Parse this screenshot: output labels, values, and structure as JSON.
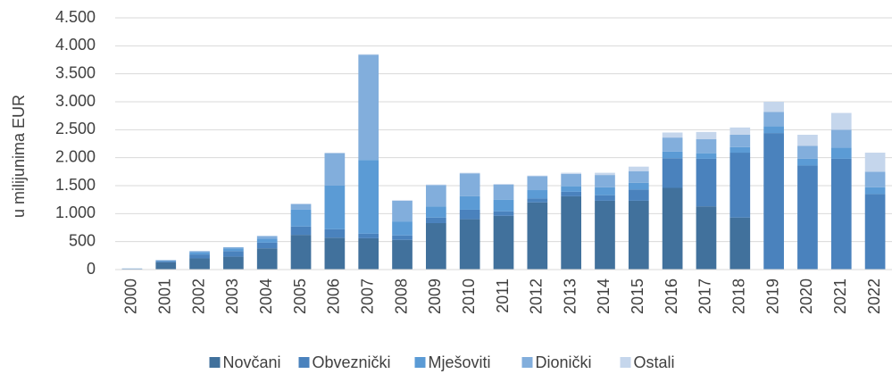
{
  "chart_data": {
    "type": "stacked_bar",
    "y_label": "u milijunima EUR",
    "categories": [
      "2000",
      "2001",
      "2002",
      "2003",
      "2004",
      "2005",
      "2006",
      "2007",
      "2008",
      "2009",
      "2010",
      "2011",
      "2012",
      "2013",
      "2014",
      "2015",
      "2016",
      "2017",
      "2018",
      "2019",
      "2020",
      "2021",
      "2022"
    ],
    "series": [
      {
        "name": "Novčani",
        "color": "#41719c",
        "values": [
          10,
          130,
          200,
          230,
          380,
          620,
          570,
          560,
          530,
          830,
          900,
          960,
          1200,
          1310,
          1230,
          1230,
          1460,
          1130,
          930,
          0,
          0,
          0,
          0
        ]
      },
      {
        "name": "Obveznički",
        "color": "#4a82bd",
        "values": [
          5,
          20,
          70,
          100,
          100,
          150,
          150,
          80,
          80,
          100,
          170,
          80,
          70,
          80,
          100,
          200,
          530,
          850,
          1160,
          2440,
          1860,
          1980,
          1350
        ]
      },
      {
        "name": "Mješoviti",
        "color": "#5b9bd5",
        "values": [
          3,
          15,
          40,
          50,
          70,
          300,
          780,
          1320,
          250,
          200,
          240,
          210,
          150,
          100,
          140,
          120,
          120,
          100,
          100,
          120,
          120,
          200,
          120
        ]
      },
      {
        "name": "Dionički",
        "color": "#82aedc",
        "values": [
          2,
          5,
          20,
          20,
          50,
          100,
          580,
          1880,
          370,
          380,
          410,
          270,
          250,
          220,
          220,
          210,
          250,
          250,
          220,
          260,
          230,
          320,
          280
        ]
      },
      {
        "name": "Ostali",
        "color": "#c5d6ec",
        "values": [
          0,
          0,
          0,
          0,
          0,
          10,
          10,
          10,
          10,
          10,
          10,
          10,
          10,
          20,
          40,
          80,
          90,
          130,
          130,
          180,
          200,
          300,
          340
        ]
      }
    ],
    "ylim": [
      0,
      4500
    ],
    "yticks": [
      0,
      500,
      {
        "value": 1000,
        "label": "1.000"
      },
      {
        "value": 1500,
        "label": "1.500"
      },
      {
        "value": 2000,
        "label": "2.000"
      },
      {
        "value": 2500,
        "label": "2.500"
      },
      {
        "value": 3000,
        "label": "3.000"
      },
      {
        "value": 3500,
        "label": "3.500"
      },
      {
        "value": 4000,
        "label": "4.000"
      },
      {
        "value": 4500,
        "label": "4.500"
      }
    ],
    "grid": true,
    "legend": "bottom"
  }
}
